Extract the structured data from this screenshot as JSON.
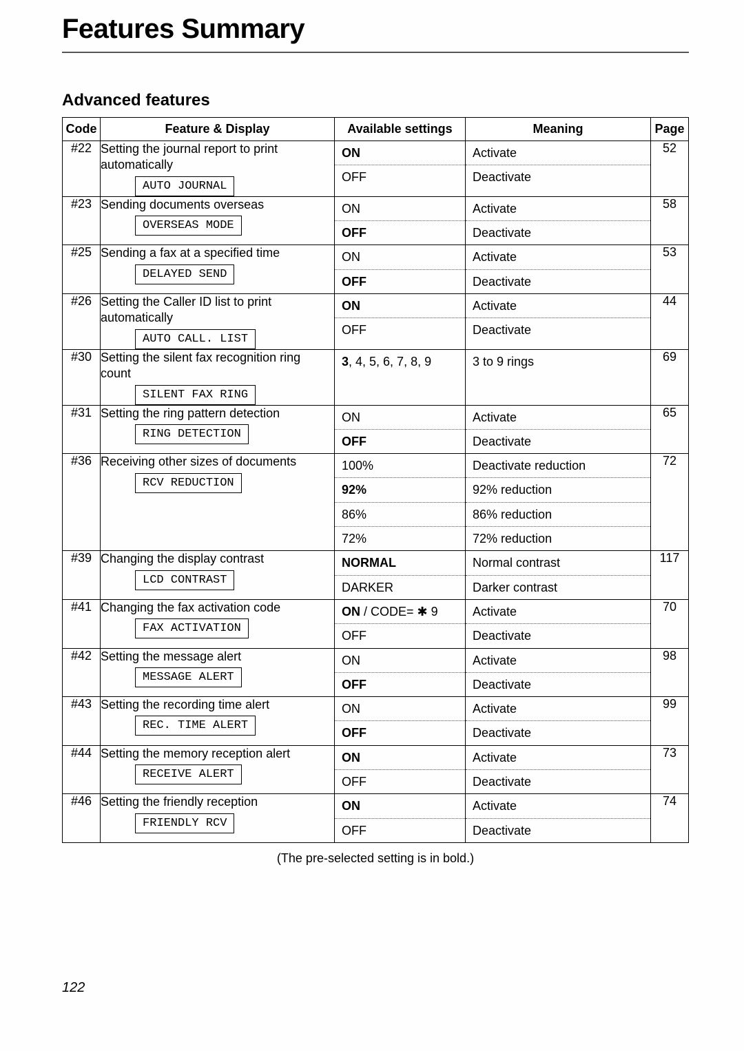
{
  "page_title": "Features Summary",
  "section_title": "Advanced features",
  "footnote": "(The pre-selected setting is in bold.)",
  "page_number": "122",
  "headers": {
    "code": "Code",
    "feature": "Feature & Display",
    "settings": "Available settings",
    "meaning": "Meaning",
    "page": "Page"
  },
  "rows": [
    {
      "code": "#22",
      "desc": "Setting the journal report to print automatically",
      "display": "AUTO JOURNAL",
      "settings": [
        {
          "text": "ON",
          "bold": true
        },
        {
          "text": "OFF",
          "bold": false
        }
      ],
      "meanings": [
        {
          "text": "Activate"
        },
        {
          "text": "Deactivate"
        }
      ],
      "page": "52"
    },
    {
      "code": "#23",
      "desc": "Sending documents overseas",
      "display": "OVERSEAS MODE",
      "settings": [
        {
          "text": "ON",
          "bold": false
        },
        {
          "text": "OFF",
          "bold": true
        }
      ],
      "meanings": [
        {
          "text": "Activate"
        },
        {
          "text": "Deactivate"
        }
      ],
      "page": "58"
    },
    {
      "code": "#25",
      "desc": "Sending a fax at a specified time",
      "display": "DELAYED SEND",
      "settings": [
        {
          "text": "ON",
          "bold": false
        },
        {
          "text": "OFF",
          "bold": true
        }
      ],
      "meanings": [
        {
          "text": "Activate"
        },
        {
          "text": "Deactivate"
        }
      ],
      "page": "53"
    },
    {
      "code": "#26",
      "desc": "Setting the Caller ID list to print automatically",
      "display": "AUTO CALL. LIST",
      "settings": [
        {
          "text": "ON",
          "bold": true
        },
        {
          "text": "OFF",
          "bold": false
        }
      ],
      "meanings": [
        {
          "text": "Activate"
        },
        {
          "text": "Deactivate"
        }
      ],
      "page": "44"
    },
    {
      "code": "#30",
      "desc": "Setting the silent fax recognition ring count",
      "display": "SILENT FAX RING",
      "settings": [
        {
          "html": "<b>3</b>, 4, 5, 6, 7, 8, 9"
        }
      ],
      "meanings": [
        {
          "text": "3 to 9 rings"
        }
      ],
      "page": "69"
    },
    {
      "code": "#31",
      "desc": "Setting the ring pattern detection",
      "display": "RING DETECTION",
      "settings": [
        {
          "text": "ON",
          "bold": false
        },
        {
          "text": "OFF",
          "bold": true
        }
      ],
      "meanings": [
        {
          "text": "Activate"
        },
        {
          "text": "Deactivate"
        }
      ],
      "page": "65"
    },
    {
      "code": "#36",
      "desc": "Receiving other sizes of documents",
      "display": "RCV REDUCTION",
      "settings": [
        {
          "text": "100%",
          "bold": false
        },
        {
          "text": "92%",
          "bold": true
        },
        {
          "text": "86%",
          "bold": false
        },
        {
          "text": "72%",
          "bold": false
        }
      ],
      "meanings": [
        {
          "text": "Deactivate reduction"
        },
        {
          "text": "92% reduction"
        },
        {
          "text": "86% reduction"
        },
        {
          "text": "72% reduction"
        }
      ],
      "page": "72"
    },
    {
      "code": "#39",
      "desc": "Changing the display contrast",
      "display": "LCD CONTRAST",
      "settings": [
        {
          "text": "NORMAL",
          "bold": true
        },
        {
          "text": "DARKER",
          "bold": false
        }
      ],
      "meanings": [
        {
          "text": "Normal contrast"
        },
        {
          "text": "Darker contrast"
        }
      ],
      "page": "117"
    },
    {
      "code": "#41",
      "desc": "Changing the fax activation code",
      "display": "FAX ACTIVATION",
      "settings": [
        {
          "html": "<b>ON</b> / CODE= ✱ 9"
        },
        {
          "text": "OFF",
          "bold": false
        }
      ],
      "meanings": [
        {
          "text": "Activate"
        },
        {
          "text": "Deactivate"
        }
      ],
      "page": "70"
    },
    {
      "code": "#42",
      "desc": "Setting the message alert",
      "display": "MESSAGE ALERT",
      "settings": [
        {
          "text": "ON",
          "bold": false
        },
        {
          "text": "OFF",
          "bold": true
        }
      ],
      "meanings": [
        {
          "text": "Activate"
        },
        {
          "text": "Deactivate"
        }
      ],
      "page": "98"
    },
    {
      "code": "#43",
      "desc": "Setting the recording time alert",
      "display": "REC. TIME ALERT",
      "settings": [
        {
          "text": "ON",
          "bold": false
        },
        {
          "text": "OFF",
          "bold": true
        }
      ],
      "meanings": [
        {
          "text": "Activate"
        },
        {
          "text": "Deactivate"
        }
      ],
      "page": "99"
    },
    {
      "code": "#44",
      "desc": "Setting the memory reception alert",
      "display": "RECEIVE ALERT",
      "settings": [
        {
          "text": "ON",
          "bold": true
        },
        {
          "text": "OFF",
          "bold": false
        }
      ],
      "meanings": [
        {
          "text": "Activate"
        },
        {
          "text": "Deactivate"
        }
      ],
      "page": "73"
    },
    {
      "code": "#46",
      "desc": "Setting the friendly reception",
      "display": "FRIENDLY RCV",
      "settings": [
        {
          "text": "ON",
          "bold": true
        },
        {
          "text": "OFF",
          "bold": false
        }
      ],
      "meanings": [
        {
          "text": "Activate"
        },
        {
          "text": "Deactivate"
        }
      ],
      "page": "74"
    }
  ]
}
